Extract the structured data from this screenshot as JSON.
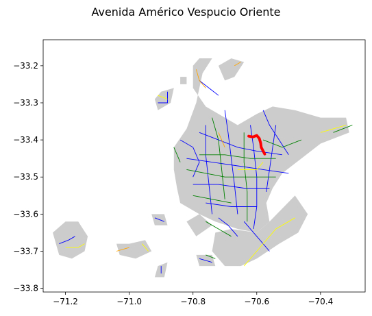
{
  "title": "Avenida Américo Vespucio Oriente",
  "map": {
    "x_ticks": [
      {
        "value": -71.2,
        "label": "−71.2"
      },
      {
        "value": -71.0,
        "label": "−71.0"
      },
      {
        "value": -70.8,
        "label": "−70.8"
      },
      {
        "value": -70.6,
        "label": "−70.6"
      },
      {
        "value": -70.4,
        "label": "−70.4"
      }
    ],
    "y_ticks": [
      {
        "value": -33.2,
        "label": "−33.2"
      },
      {
        "value": -33.3,
        "label": "−33.3"
      },
      {
        "value": -33.4,
        "label": "−33.4"
      },
      {
        "value": -33.5,
        "label": "−33.5"
      },
      {
        "value": -33.6,
        "label": "−33.6"
      },
      {
        "value": -33.7,
        "label": "−33.7"
      },
      {
        "value": -33.8,
        "label": "−33.8"
      }
    ],
    "xlim": [
      -71.27,
      -70.26
    ],
    "ylim": [
      -33.81,
      -33.13
    ],
    "colors": {
      "area": "#cccccc",
      "network_blue": "#0000ff",
      "network_green": "#008000",
      "network_yellow": "#ffff00",
      "network_orange": "#ffa500",
      "highlight": "#ff0000"
    },
    "highlight_route": [
      [
        -70.625,
        -33.39
      ],
      [
        -70.612,
        -33.392
      ],
      [
        -70.6,
        -33.388
      ],
      [
        -70.592,
        -33.396
      ],
      [
        -70.588,
        -33.408
      ],
      [
        -70.586,
        -33.42
      ],
      [
        -70.58,
        -33.43
      ],
      [
        -70.575,
        -33.438
      ]
    ],
    "areas": [
      [
        [
          -70.6,
          -33.33
        ],
        [
          -70.55,
          -33.31
        ],
        [
          -70.48,
          -33.32
        ],
        [
          -70.4,
          -33.34
        ],
        [
          -70.32,
          -33.34
        ],
        [
          -70.31,
          -33.38
        ],
        [
          -70.4,
          -33.41
        ],
        [
          -70.46,
          -33.45
        ],
        [
          -70.52,
          -33.49
        ],
        [
          -70.55,
          -33.53
        ],
        [
          -70.57,
          -33.57
        ],
        [
          -70.56,
          -33.62
        ],
        [
          -70.6,
          -33.65
        ],
        [
          -70.66,
          -33.64
        ],
        [
          -70.73,
          -33.62
        ],
        [
          -70.78,
          -33.6
        ],
        [
          -70.84,
          -33.57
        ],
        [
          -70.85,
          -33.53
        ],
        [
          -70.86,
          -33.48
        ],
        [
          -70.86,
          -33.42
        ],
        [
          -70.82,
          -33.37
        ],
        [
          -70.79,
          -33.3
        ],
        [
          -70.77,
          -33.22
        ],
        [
          -70.74,
          -33.18
        ],
        [
          -70.78,
          -33.18
        ],
        [
          -70.8,
          -33.2
        ],
        [
          -70.8,
          -33.26
        ],
        [
          -70.76,
          -33.31
        ],
        [
          -70.7,
          -33.34
        ],
        [
          -70.66,
          -33.36
        ]
      ],
      [
        [
          -70.72,
          -33.2
        ],
        [
          -70.68,
          -33.18
        ],
        [
          -70.64,
          -33.19
        ],
        [
          -70.67,
          -33.23
        ],
        [
          -70.7,
          -33.24
        ]
      ],
      [
        [
          -70.48,
          -33.55
        ],
        [
          -70.44,
          -33.6
        ],
        [
          -70.47,
          -33.65
        ],
        [
          -70.53,
          -33.68
        ],
        [
          -70.6,
          -33.72
        ],
        [
          -70.65,
          -33.74
        ],
        [
          -70.7,
          -33.74
        ],
        [
          -70.74,
          -33.7
        ],
        [
          -70.73,
          -33.65
        ],
        [
          -70.68,
          -33.64
        ],
        [
          -70.6,
          -33.65
        ],
        [
          -70.56,
          -33.62
        ]
      ],
      [
        [
          -70.74,
          -33.63
        ],
        [
          -70.78,
          -33.6
        ],
        [
          -70.82,
          -33.62
        ],
        [
          -70.79,
          -33.66
        ]
      ],
      [
        [
          -71.24,
          -33.65
        ],
        [
          -71.2,
          -33.62
        ],
        [
          -71.16,
          -33.62
        ],
        [
          -71.13,
          -33.66
        ],
        [
          -71.14,
          -33.7
        ],
        [
          -71.18,
          -33.72
        ],
        [
          -71.22,
          -33.71
        ]
      ],
      [
        [
          -71.04,
          -33.68
        ],
        [
          -71.0,
          -33.68
        ],
        [
          -70.95,
          -33.67
        ],
        [
          -70.93,
          -33.7
        ],
        [
          -70.98,
          -33.72
        ],
        [
          -71.03,
          -33.71
        ]
      ],
      [
        [
          -70.91,
          -33.32
        ],
        [
          -70.87,
          -33.3
        ],
        [
          -70.86,
          -33.26
        ],
        [
          -70.9,
          -33.27
        ],
        [
          -70.92,
          -33.29
        ]
      ],
      [
        [
          -70.93,
          -33.6
        ],
        [
          -70.89,
          -33.6
        ],
        [
          -70.88,
          -33.63
        ],
        [
          -70.92,
          -33.63
        ]
      ],
      [
        [
          -70.79,
          -33.71
        ],
        [
          -70.74,
          -33.71
        ],
        [
          -70.73,
          -33.74
        ],
        [
          -70.78,
          -33.74
        ]
      ],
      [
        [
          -70.91,
          -33.74
        ],
        [
          -70.88,
          -33.73
        ],
        [
          -70.89,
          -33.77
        ],
        [
          -70.92,
          -33.77
        ]
      ],
      [
        [
          -70.84,
          -33.23
        ],
        [
          -70.82,
          -33.23
        ],
        [
          -70.82,
          -33.25
        ],
        [
          -70.84,
          -33.25
        ]
      ]
    ],
    "network_segments": [
      {
        "c": "blue",
        "p": [
          [
            -70.78,
            -33.38
          ],
          [
            -70.72,
            -33.4
          ],
          [
            -70.66,
            -33.42
          ],
          [
            -70.6,
            -33.43
          ],
          [
            -70.52,
            -33.44
          ]
        ]
      },
      {
        "c": "blue",
        "p": [
          [
            -70.82,
            -33.45
          ],
          [
            -70.74,
            -33.46
          ],
          [
            -70.66,
            -33.47
          ],
          [
            -70.58,
            -33.48
          ],
          [
            -70.5,
            -33.49
          ]
        ]
      },
      {
        "c": "blue",
        "p": [
          [
            -70.8,
            -33.52
          ],
          [
            -70.72,
            -33.52
          ],
          [
            -70.64,
            -33.53
          ],
          [
            -70.56,
            -33.53
          ]
        ]
      },
      {
        "c": "blue",
        "p": [
          [
            -70.76,
            -33.57
          ],
          [
            -70.68,
            -33.58
          ],
          [
            -70.6,
            -33.58
          ]
        ]
      },
      {
        "c": "blue",
        "p": [
          [
            -70.7,
            -33.32
          ],
          [
            -70.69,
            -33.38
          ],
          [
            -70.68,
            -33.45
          ],
          [
            -70.67,
            -33.52
          ],
          [
            -70.66,
            -33.6
          ]
        ]
      },
      {
        "c": "blue",
        "p": [
          [
            -70.62,
            -33.36
          ],
          [
            -70.61,
            -33.42
          ],
          [
            -70.6,
            -33.5
          ],
          [
            -70.6,
            -33.58
          ],
          [
            -70.61,
            -33.64
          ]
        ]
      },
      {
        "c": "blue",
        "p": [
          [
            -70.76,
            -33.36
          ],
          [
            -70.76,
            -33.44
          ],
          [
            -70.75,
            -33.52
          ],
          [
            -70.74,
            -33.6
          ]
        ]
      },
      {
        "c": "blue",
        "p": [
          [
            -70.54,
            -33.36
          ],
          [
            -70.55,
            -33.42
          ],
          [
            -70.56,
            -33.48
          ],
          [
            -70.57,
            -33.54
          ]
        ]
      },
      {
        "c": "blue",
        "p": [
          [
            -70.84,
            -33.4
          ],
          [
            -70.8,
            -33.42
          ],
          [
            -70.78,
            -33.46
          ],
          [
            -70.8,
            -33.5
          ]
        ]
      },
      {
        "c": "blue",
        "p": [
          [
            -70.58,
            -33.32
          ],
          [
            -70.56,
            -33.36
          ],
          [
            -70.53,
            -33.4
          ],
          [
            -70.5,
            -33.44
          ]
        ]
      },
      {
        "c": "blue",
        "p": [
          [
            -70.78,
            -33.24
          ],
          [
            -70.75,
            -33.26
          ],
          [
            -70.72,
            -33.28
          ]
        ]
      },
      {
        "c": "blue",
        "p": [
          [
            -70.64,
            -33.62
          ],
          [
            -70.6,
            -33.66
          ],
          [
            -70.56,
            -33.7
          ]
        ]
      },
      {
        "c": "blue",
        "p": [
          [
            -71.22,
            -33.68
          ],
          [
            -71.19,
            -33.67
          ],
          [
            -71.17,
            -33.66
          ]
        ]
      },
      {
        "c": "blue",
        "p": [
          [
            -70.91,
            -33.3
          ],
          [
            -70.88,
            -33.3
          ],
          [
            -70.88,
            -33.27
          ]
        ]
      },
      {
        "c": "blue",
        "p": [
          [
            -70.92,
            -33.61
          ],
          [
            -70.89,
            -33.62
          ]
        ]
      },
      {
        "c": "blue",
        "p": [
          [
            -70.78,
            -33.72
          ],
          [
            -70.74,
            -33.73
          ]
        ]
      },
      {
        "c": "blue",
        "p": [
          [
            -70.9,
            -33.74
          ],
          [
            -70.9,
            -33.76
          ]
        ]
      },
      {
        "c": "blue",
        "p": [
          [
            -70.72,
            -33.61
          ],
          [
            -70.69,
            -33.63
          ],
          [
            -70.66,
            -33.66
          ]
        ]
      },
      {
        "c": "green",
        "p": [
          [
            -70.82,
            -33.48
          ],
          [
            -70.76,
            -33.49
          ],
          [
            -70.7,
            -33.5
          ],
          [
            -70.62,
            -33.5
          ],
          [
            -70.54,
            -33.5
          ]
        ]
      },
      {
        "c": "green",
        "p": [
          [
            -70.78,
            -33.44
          ],
          [
            -70.7,
            -33.44
          ],
          [
            -70.62,
            -33.45
          ],
          [
            -70.54,
            -33.45
          ]
        ]
      },
      {
        "c": "green",
        "p": [
          [
            -70.74,
            -33.34
          ],
          [
            -70.72,
            -33.4
          ],
          [
            -70.71,
            -33.48
          ],
          [
            -70.7,
            -33.56
          ]
        ]
      },
      {
        "c": "green",
        "p": [
          [
            -70.64,
            -33.38
          ],
          [
            -70.64,
            -33.46
          ],
          [
            -70.63,
            -33.54
          ],
          [
            -70.63,
            -33.62
          ]
        ]
      },
      {
        "c": "green",
        "p": [
          [
            -70.58,
            -33.4
          ],
          [
            -70.52,
            -33.42
          ],
          [
            -70.46,
            -33.4
          ]
        ]
      },
      {
        "c": "green",
        "p": [
          [
            -70.8,
            -33.55
          ],
          [
            -70.74,
            -33.56
          ],
          [
            -70.68,
            -33.57
          ]
        ]
      },
      {
        "c": "green",
        "p": [
          [
            -70.36,
            -33.38
          ],
          [
            -70.33,
            -33.37
          ],
          [
            -70.3,
            -33.36
          ]
        ]
      },
      {
        "c": "green",
        "p": [
          [
            -70.76,
            -33.62
          ],
          [
            -70.72,
            -33.64
          ],
          [
            -70.68,
            -33.66
          ]
        ]
      },
      {
        "c": "green",
        "p": [
          [
            -70.86,
            -33.42
          ],
          [
            -70.84,
            -33.46
          ]
        ]
      },
      {
        "c": "green",
        "p": [
          [
            -70.76,
            -33.71
          ],
          [
            -70.73,
            -33.72
          ]
        ]
      },
      {
        "c": "yellow",
        "p": [
          [
            -70.48,
            -33.61
          ],
          [
            -70.54,
            -33.64
          ],
          [
            -70.6,
            -33.7
          ],
          [
            -70.64,
            -33.74
          ]
        ]
      },
      {
        "c": "yellow",
        "p": [
          [
            -70.4,
            -33.38
          ],
          [
            -70.36,
            -33.37
          ],
          [
            -70.32,
            -33.36
          ]
        ]
      },
      {
        "c": "yellow",
        "p": [
          [
            -70.58,
            -33.46
          ],
          [
            -70.6,
            -33.48
          ],
          [
            -70.66,
            -33.48
          ]
        ]
      },
      {
        "c": "yellow",
        "p": [
          [
            -71.2,
            -33.69
          ],
          [
            -71.16,
            -33.69
          ],
          [
            -71.14,
            -33.68
          ]
        ]
      },
      {
        "c": "yellow",
        "p": [
          [
            -70.91,
            -33.28
          ],
          [
            -70.88,
            -33.29
          ]
        ]
      },
      {
        "c": "yellow",
        "p": [
          [
            -70.96,
            -33.68
          ],
          [
            -70.94,
            -33.7
          ]
        ]
      },
      {
        "c": "orange",
        "p": [
          [
            -70.79,
            -33.21
          ],
          [
            -70.78,
            -33.24
          ],
          [
            -70.76,
            -33.26
          ]
        ]
      },
      {
        "c": "orange",
        "p": [
          [
            -70.67,
            -33.2
          ],
          [
            -70.65,
            -33.19
          ]
        ]
      },
      {
        "c": "orange",
        "p": [
          [
            -71.04,
            -33.7
          ],
          [
            -71.0,
            -33.69
          ]
        ]
      },
      {
        "c": "orange",
        "p": [
          [
            -70.72,
            -33.38
          ],
          [
            -70.7,
            -33.42
          ]
        ]
      }
    ]
  }
}
